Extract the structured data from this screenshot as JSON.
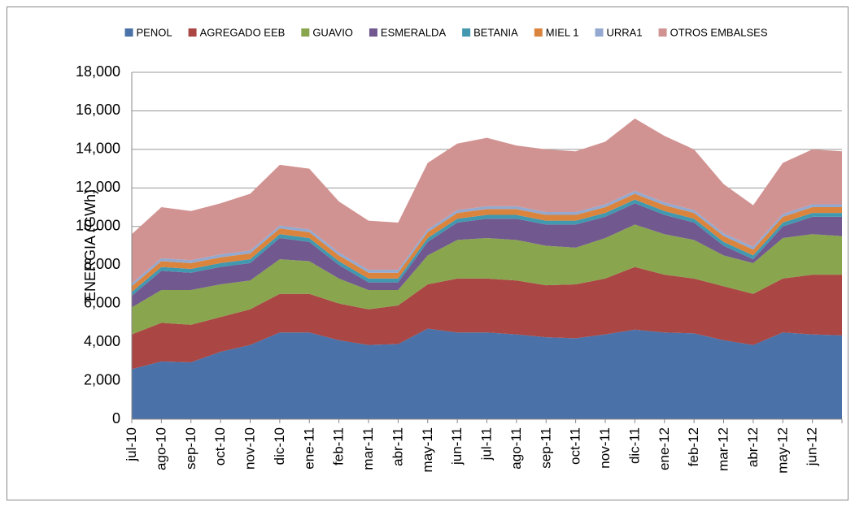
{
  "chart_data": {
    "type": "stacked_area",
    "y_label": "ENERGIA (GWh)",
    "categories": [
      "jul-10",
      "ago-10",
      "sep-10",
      "oct-10",
      "nov-10",
      "dic-10",
      "ene-11",
      "feb-11",
      "mar-11",
      "abr-11",
      "may-11",
      "jun-11",
      "jul-11",
      "ago-11",
      "sep-11",
      "oct-11",
      "nov-11",
      "dic-11",
      "ene-12",
      "feb-12",
      "mar-12",
      "abr-12",
      "may-12",
      "jun-12",
      null
    ],
    "series": [
      {
        "name": "PENOL",
        "color": "#4a72a8",
        "values": [
          2600,
          3000,
          2950,
          3500,
          3850,
          4500,
          4500,
          4100,
          3850,
          3900,
          4700,
          4500,
          4500,
          4400,
          4250,
          4200,
          4400,
          4650,
          4500,
          4450,
          4100,
          3850,
          4500,
          4400,
          4350
        ]
      },
      {
        "name": "AGREGADO EEB",
        "color": "#aa4643",
        "values": [
          1800,
          2000,
          1950,
          1800,
          1850,
          2000,
          2000,
          1900,
          1850,
          2000,
          2300,
          2800,
          2800,
          2800,
          2700,
          2800,
          2900,
          3250,
          3000,
          2850,
          2800,
          2650,
          2800,
          3100,
          3150
        ]
      },
      {
        "name": "GUAVIO",
        "color": "#89a54e",
        "values": [
          1400,
          1700,
          1800,
          1700,
          1500,
          1800,
          1700,
          1300,
          1000,
          800,
          1500,
          2000,
          2100,
          2100,
          2050,
          1900,
          2100,
          2200,
          2100,
          2000,
          1600,
          1600,
          2100,
          2100,
          2000
        ]
      },
      {
        "name": "ESMERALDA",
        "color": "#71588f",
        "values": [
          600,
          1000,
          900,
          900,
          900,
          1100,
          1000,
          700,
          400,
          400,
          700,
          900,
          1000,
          1100,
          1100,
          1200,
          1100,
          1100,
          1000,
          900,
          500,
          200,
          600,
          900,
          1000
        ]
      },
      {
        "name": "BETANIA",
        "color": "#4198af",
        "values": [
          200,
          200,
          200,
          200,
          200,
          200,
          200,
          200,
          200,
          200,
          200,
          200,
          200,
          200,
          200,
          200,
          200,
          200,
          200,
          200,
          200,
          200,
          200,
          200,
          200
        ]
      },
      {
        "name": "MIEL 1",
        "color": "#db843d",
        "values": [
          300,
          300,
          300,
          300,
          300,
          300,
          300,
          300,
          300,
          300,
          300,
          300,
          300,
          300,
          300,
          300,
          300,
          300,
          300,
          300,
          300,
          300,
          300,
          300,
          300
        ]
      },
      {
        "name": "URRA1",
        "color": "#93a9cf",
        "values": [
          150,
          150,
          150,
          150,
          150,
          150,
          150,
          150,
          150,
          150,
          150,
          150,
          150,
          150,
          150,
          150,
          150,
          150,
          150,
          150,
          150,
          150,
          150,
          150,
          150
        ]
      },
      {
        "name": "OTROS EMBALSES",
        "color": "#d19392",
        "values": [
          2550,
          2650,
          2550,
          2650,
          2950,
          3150,
          3150,
          2650,
          2550,
          2450,
          3450,
          3450,
          3550,
          3150,
          3250,
          3150,
          3250,
          3750,
          3450,
          3150,
          2550,
          2150,
          2650,
          2850,
          2750
        ]
      }
    ],
    "ylim": [
      0,
      18000
    ],
    "yticks": [
      0,
      {
        "value": 2000,
        "label": "2,000"
      },
      {
        "value": 4000,
        "label": "4,000"
      },
      {
        "value": 6000,
        "label": "6,000"
      },
      {
        "value": 8000,
        "label": "8,000"
      },
      {
        "value": 10000,
        "label": "10,000"
      },
      {
        "value": 12000,
        "label": "12,000"
      },
      {
        "value": 14000,
        "label": "14,000"
      },
      {
        "value": 16000,
        "label": "16,000"
      },
      {
        "value": 18000,
        "label": "18,000"
      }
    ],
    "grid": true,
    "legend": "top"
  }
}
